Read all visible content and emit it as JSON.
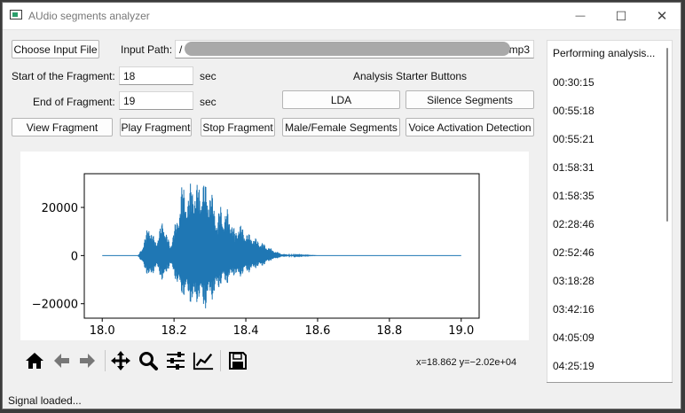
{
  "window": {
    "title": "AUdio segments analyzer"
  },
  "title_buttons": {
    "minimize": "—",
    "maximize": "☐",
    "close": "✕"
  },
  "inputs": {
    "choose_input_file": "Choose Input File",
    "input_path_label": "Input Path:",
    "input_path_start": "/",
    "input_path_end": ".mp3",
    "start_label": "Start of the Fragment:",
    "start_value": "18",
    "start_unit": "sec",
    "end_label": "End of Fragment:",
    "end_value": "19",
    "end_unit": "sec"
  },
  "analysis": {
    "heading": "Analysis Starter Buttons",
    "lda": "LDA",
    "silence": "Silence Segments",
    "male_female": "Male/Female Segments",
    "vad": "Voice Activation Detection"
  },
  "fragment_buttons": {
    "view": "View Fragment",
    "play": "Play Fragment",
    "stop": "Stop Fragment"
  },
  "chart_data": {
    "type": "line",
    "title": "",
    "xlabel": "",
    "ylabel": "",
    "xlim": [
      17.95,
      19.05
    ],
    "ylim": [
      -26000,
      34000
    ],
    "x_ticks": [
      "18.0",
      "18.2",
      "18.4",
      "18.6",
      "18.8",
      "19.0"
    ],
    "x_tick_values": [
      18.0,
      18.2,
      18.4,
      18.6,
      18.8,
      19.0
    ],
    "y_ticks": [
      "20000",
      "0",
      "−20000"
    ],
    "y_tick_values": [
      20000,
      0,
      -20000
    ],
    "color": "#1f77b4",
    "envelope": {
      "x": [
        18.0,
        18.1,
        18.11,
        18.12,
        18.13,
        18.14,
        18.15,
        18.16,
        18.17,
        18.18,
        18.19,
        18.2,
        18.21,
        18.22,
        18.23,
        18.24,
        18.25,
        18.26,
        18.27,
        18.28,
        18.29,
        18.3,
        18.31,
        18.32,
        18.33,
        18.34,
        18.35,
        18.36,
        18.37,
        18.38,
        18.39,
        18.4,
        18.41,
        18.42,
        18.43,
        18.44,
        18.45,
        18.46,
        18.47,
        18.48,
        18.5,
        18.52,
        18.55,
        18.58,
        18.6,
        19.0
      ],
      "upper": [
        0,
        0,
        3000,
        8000,
        14000,
        9000,
        6000,
        11000,
        16000,
        9000,
        4000,
        12000,
        16000,
        30000,
        28000,
        26000,
        33000,
        29000,
        31000,
        32000,
        30000,
        28000,
        24000,
        15000,
        22000,
        17000,
        20000,
        15000,
        10000,
        14000,
        12000,
        10000,
        9000,
        8000,
        7000,
        6000,
        5000,
        4000,
        3000,
        2000,
        800,
        400,
        200,
        100,
        0,
        0
      ],
      "lower": [
        0,
        0,
        -3000,
        -6000,
        -10000,
        -8000,
        -5000,
        -8000,
        -12000,
        -7000,
        -4000,
        -8000,
        -13000,
        -16000,
        -18000,
        -17000,
        -22000,
        -20000,
        -19000,
        -21000,
        -23000,
        -17000,
        -19000,
        -14000,
        -13000,
        -11000,
        -12000,
        -9000,
        -8000,
        -10000,
        -8000,
        -7000,
        -7000,
        -6000,
        -5000,
        -5000,
        -4000,
        -3000,
        -2000,
        -1500,
        -600,
        -300,
        -150,
        -80,
        0,
        0
      ]
    }
  },
  "plot_toolbar": {
    "icons": [
      "home-icon",
      "back-arrow-icon",
      "forward-arrow-icon",
      "pan-icon",
      "zoom-icon",
      "configure-subplots-icon",
      "edit-axis-icon",
      "save-icon"
    ],
    "coords": "x=18.862 y=−2.02e+04"
  },
  "results": {
    "header": "Performing analysis...",
    "items": [
      "00:30:15",
      "00:55:18",
      "00:55:21",
      "01:58:31",
      "01:58:35",
      "02:28:46",
      "02:52:46",
      "03:18:28",
      "03:42:16",
      "04:05:09",
      "04:25:19"
    ]
  },
  "status": "Signal loaded..."
}
